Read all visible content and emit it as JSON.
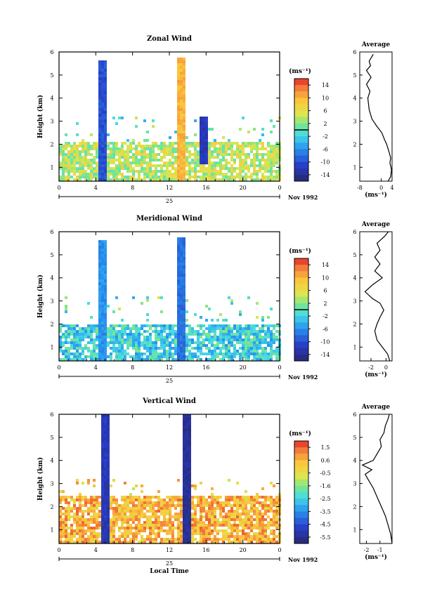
{
  "figure": {
    "time_axis_label": "Local Time",
    "date_label": "Nov 1992",
    "day_label": "25",
    "height_label": "Height (km)",
    "unit_label": "(ms⁻¹)",
    "average_title": "Average"
  },
  "chart_data": [
    {
      "type": "heatmap",
      "title": "Zonal Wind",
      "xlabel": "Local Time",
      "ylabel": "Height (km)",
      "x_ticks": [
        "0",
        "4",
        "8",
        "12",
        "16",
        "20",
        "0"
      ],
      "xlim": [
        0,
        24
      ],
      "y_ticks": [
        "1",
        "2",
        "3",
        "4",
        "5",
        "6"
      ],
      "ylim": [
        0.4,
        6
      ],
      "colorbar": {
        "label": "(ms⁻¹)",
        "ticks": [
          "14",
          "10",
          "6",
          "2",
          "-2",
          "-6",
          "-10",
          "-14"
        ],
        "range": [
          -16,
          16
        ],
        "marked_level": 0
      },
      "features": [
        {
          "kind": "low-level band",
          "height_km": [
            0.4,
            2.2
          ],
          "value_ms": 4
        },
        {
          "kind": "column",
          "time_h": 4.6,
          "height_km": [
            0.4,
            5.7
          ],
          "value_ms": -10
        },
        {
          "kind": "column",
          "time_h": 13.2,
          "height_km": [
            0.4,
            5.8
          ],
          "value_ms": 10
        },
        {
          "kind": "column",
          "time_h": 15.5,
          "height_km": [
            1.2,
            3.2
          ],
          "value_ms": -12
        }
      ],
      "profile": {
        "title": "Average",
        "xlabel": "(ms⁻¹)",
        "x_ticks": [
          "-8",
          "0",
          "4"
        ],
        "xlim": [
          -8,
          4
        ],
        "ylim": [
          0.4,
          6
        ],
        "points": [
          [
            2.5,
            0.4
          ],
          [
            3.5,
            0.6
          ],
          [
            3.8,
            0.9
          ],
          [
            3.2,
            1.2
          ],
          [
            3.5,
            1.4
          ],
          [
            2.8,
            1.7
          ],
          [
            2.0,
            2.0
          ],
          [
            1.2,
            2.2
          ],
          [
            0.2,
            2.5
          ],
          [
            -1.8,
            2.8
          ],
          [
            -3.5,
            3.1
          ],
          [
            -4.5,
            3.5
          ],
          [
            -5.0,
            4.0
          ],
          [
            -4.2,
            4.3
          ],
          [
            -5.5,
            4.6
          ],
          [
            -3.8,
            4.9
          ],
          [
            -5.5,
            5.2
          ],
          [
            -4.0,
            5.4
          ],
          [
            -4.5,
            5.6
          ],
          [
            -3.0,
            5.9
          ]
        ]
      }
    },
    {
      "type": "heatmap",
      "title": "Meridional Wind",
      "xlabel": "Local Time",
      "ylabel": "Height (km)",
      "x_ticks": [
        "0",
        "4",
        "8",
        "12",
        "16",
        "20",
        "0"
      ],
      "xlim": [
        0,
        24
      ],
      "y_ticks": [
        "1",
        "2",
        "3",
        "4",
        "5",
        "6"
      ],
      "ylim": [
        0.4,
        6
      ],
      "colorbar": {
        "label": "(ms⁻¹)",
        "ticks": [
          "14",
          "10",
          "6",
          "2",
          "-2",
          "-6",
          "-10",
          "-14"
        ],
        "range": [
          -16,
          16
        ],
        "marked_level": 0
      },
      "features": [
        {
          "kind": "low-level band",
          "height_km": [
            0.4,
            2.0
          ],
          "value_ms": -2
        },
        {
          "kind": "column",
          "time_h": 4.6,
          "height_km": [
            0.4,
            5.7
          ],
          "value_ms": -6
        },
        {
          "kind": "column",
          "time_h": 13.2,
          "height_km": [
            0.4,
            5.8
          ],
          "value_ms": -8
        }
      ],
      "profile": {
        "title": "Average",
        "xlabel": "(ms⁻¹)",
        "x_ticks": [
          "-2",
          "0"
        ],
        "xlim": [
          -3.5,
          0.8
        ],
        "ylim": [
          0.4,
          6
        ],
        "points": [
          [
            0.5,
            0.4
          ],
          [
            0.2,
            0.7
          ],
          [
            -0.5,
            1.0
          ],
          [
            -1.2,
            1.3
          ],
          [
            -1.5,
            1.7
          ],
          [
            -1.2,
            2.0
          ],
          [
            -0.8,
            2.3
          ],
          [
            -0.3,
            2.6
          ],
          [
            -0.8,
            2.9
          ],
          [
            -1.8,
            3.1
          ],
          [
            -2.8,
            3.4
          ],
          [
            -1.8,
            3.7
          ],
          [
            -0.5,
            4.0
          ],
          [
            -1.5,
            4.3
          ],
          [
            -0.8,
            4.6
          ],
          [
            -1.5,
            4.9
          ],
          [
            -0.8,
            5.2
          ],
          [
            -1.2,
            5.5
          ],
          [
            -0.2,
            5.8
          ],
          [
            0.3,
            6.0
          ]
        ]
      }
    },
    {
      "type": "heatmap",
      "title": "Vertical Wind",
      "xlabel": "Local Time",
      "ylabel": "Height (km)",
      "x_ticks": [
        "0",
        "4",
        "8",
        "12",
        "16",
        "20",
        "0"
      ],
      "xlim": [
        0,
        24
      ],
      "y_ticks": [
        "1",
        "2",
        "3",
        "4",
        "5",
        "6"
      ],
      "ylim": [
        0.4,
        6
      ],
      "colorbar": {
        "label": "(ms⁻¹)",
        "ticks": [
          "1.5",
          "0.6",
          "-0.5",
          "-1.6",
          "-2.5",
          "-3.5",
          "-4.5",
          "-5.5"
        ],
        "range": [
          -6,
          2
        ],
        "marked_level": null
      },
      "features": [
        {
          "kind": "low-level band",
          "height_km": [
            0.4,
            2.5
          ],
          "value_ms": 0.5
        },
        {
          "kind": "column",
          "time_h": 4.9,
          "height_km": [
            0.4,
            6.0
          ],
          "value_ms": -5
        },
        {
          "kind": "column",
          "time_h": 13.7,
          "height_km": [
            0.4,
            6.0
          ],
          "value_ms": -5.5
        }
      ],
      "profile": {
        "title": "Average",
        "xlabel": "(ms⁻¹)",
        "x_ticks": [
          "-2",
          "-1"
        ],
        "xlim": [
          -2.5,
          -0.1
        ],
        "ylim": [
          0.4,
          6
        ],
        "points": [
          [
            -0.1,
            0.4
          ],
          [
            -0.2,
            0.8
          ],
          [
            -0.4,
            1.2
          ],
          [
            -0.6,
            1.6
          ],
          [
            -0.9,
            2.0
          ],
          [
            -1.2,
            2.4
          ],
          [
            -1.5,
            2.8
          ],
          [
            -1.8,
            3.1
          ],
          [
            -2.1,
            3.4
          ],
          [
            -1.6,
            3.6
          ],
          [
            -2.3,
            3.8
          ],
          [
            -1.5,
            4.0
          ],
          [
            -1.2,
            4.3
          ],
          [
            -0.9,
            4.6
          ],
          [
            -1.0,
            4.9
          ],
          [
            -0.7,
            5.2
          ],
          [
            -0.6,
            5.5
          ],
          [
            -0.4,
            5.8
          ],
          [
            -0.3,
            6.0
          ]
        ]
      }
    }
  ]
}
